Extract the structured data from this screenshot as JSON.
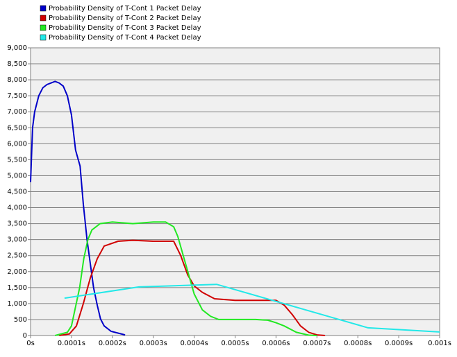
{
  "chart_data": {
    "type": "line",
    "series": [
      {
        "name": "Probability Density of T-Cont 1 Packet Delay",
        "color": "#0000c8",
        "x": [
          0,
          5e-06,
          1e-05,
          2e-05,
          3e-05,
          4e-05,
          5e-05,
          6e-05,
          7e-05,
          8e-05,
          9e-05,
          0.0001,
          0.00011,
          0.000121,
          0.000129,
          0.000138,
          0.000146,
          0.000154,
          0.000163,
          0.000171,
          0.00018,
          0.000197,
          0.000231
        ],
        "values": [
          4800,
          6500,
          7000,
          7500,
          7750,
          7850,
          7900,
          7950,
          7900,
          7800,
          7500,
          6900,
          5800,
          5300,
          4100,
          3000,
          2250,
          1500,
          950,
          520,
          300,
          130,
          20
        ]
      },
      {
        "name": "Probability Density of T-Cont 2 Packet Delay",
        "color": "#d00000",
        "x": [
          7e-05,
          9.5e-05,
          0.000112,
          0.000129,
          0.000146,
          0.000163,
          0.00018,
          0.000214,
          0.00025,
          0.0003,
          0.00035,
          0.000367,
          0.000384,
          0.0004,
          0.00042,
          0.00045,
          0.0005,
          0.00055,
          0.0006,
          0.00062,
          0.00064,
          0.00066,
          0.00068,
          0.0007,
          0.00072
        ],
        "values": [
          0,
          50,
          300,
          1000,
          1800,
          2400,
          2800,
          2950,
          2980,
          2950,
          2950,
          2500,
          1900,
          1550,
          1350,
          1150,
          1100,
          1100,
          1100,
          950,
          650,
          300,
          100,
          20,
          0
        ]
      },
      {
        "name": "Probability Density of T-Cont 3 Packet Delay",
        "color": "#22e822",
        "x": [
          6e-05,
          9e-05,
          0.0001,
          0.00011,
          0.00012,
          0.00013,
          0.00014,
          0.00015,
          0.00017,
          0.0002,
          0.00025,
          0.0003,
          0.00033,
          0.00035,
          0.00036,
          0.00038,
          0.0004,
          0.00042,
          0.00044,
          0.00046,
          0.0005,
          0.00055,
          0.00058,
          0.0006,
          0.00062,
          0.00065,
          0.00068,
          0.0007
        ],
        "values": [
          0,
          100,
          300,
          900,
          1500,
          2400,
          3000,
          3300,
          3500,
          3550,
          3500,
          3550,
          3550,
          3400,
          3100,
          2200,
          1300,
          800,
          600,
          500,
          500,
          500,
          480,
          400,
          300,
          100,
          10,
          0
        ]
      },
      {
        "name": "Probability Density of T-Cont 4 Packet Delay",
        "color": "#22e8e8",
        "x": [
          8.3e-05,
          0.000265,
          0.000455,
          0.000825,
          0.001
        ],
        "values": [
          1170,
          1520,
          1600,
          240,
          110
        ]
      }
    ],
    "xlim": [
      0,
      0.001
    ],
    "xticks": [
      {
        "value": 0,
        "label": "0s"
      },
      {
        "value": 0.0001,
        "label": "0.0001s"
      },
      {
        "value": 0.0002,
        "label": "0.0002s"
      },
      {
        "value": 0.0003,
        "label": "0.0003s"
      },
      {
        "value": 0.0004,
        "label": "0.0004s"
      },
      {
        "value": 0.0005,
        "label": "0.0005s"
      },
      {
        "value": 0.0006,
        "label": "0.0006s"
      },
      {
        "value": 0.0007,
        "label": "0.0007s"
      },
      {
        "value": 0.0008,
        "label": "0.0008s"
      },
      {
        "value": 0.0009,
        "label": "0.0009s"
      },
      {
        "value": 0.001,
        "label": "0.001s"
      }
    ],
    "ylim": [
      0,
      9000
    ],
    "yticks": [
      0,
      500,
      {
        "value": 1000,
        "label": "1,000"
      },
      {
        "value": 1500,
        "label": "1,500"
      },
      {
        "value": 2000,
        "label": "2,000"
      },
      {
        "value": 2500,
        "label": "2,500"
      },
      {
        "value": 3000,
        "label": "3,000"
      },
      {
        "value": 3500,
        "label": "3,500"
      },
      {
        "value": 4000,
        "label": "4,000"
      },
      {
        "value": 4500,
        "label": "4,500"
      },
      {
        "value": 5000,
        "label": "5,000"
      },
      {
        "value": 5500,
        "label": "5,500"
      },
      {
        "value": 6000,
        "label": "6,000"
      },
      {
        "value": 6500,
        "label": "6,500"
      },
      {
        "value": 7000,
        "label": "7,000"
      },
      {
        "value": 7500,
        "label": "7,500"
      },
      {
        "value": 8000,
        "label": "8,000"
      },
      {
        "value": 8500,
        "label": "8,500"
      },
      {
        "value": 9000,
        "label": "9,000"
      }
    ],
    "grid": true,
    "legend": "top-left"
  }
}
